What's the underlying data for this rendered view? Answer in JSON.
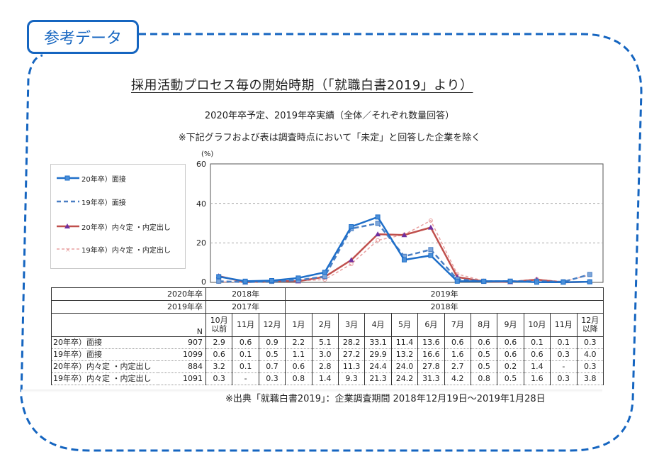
{
  "tag": {
    "label": "参考データ"
  },
  "header": {
    "title": "採用活動プロセス毎の開始時期（「就職白書2019」より）",
    "subtitle": "2020年卒予定、2019年卒実績（全体／それぞれ数量回答）",
    "note": "※下記グラフおよび表は調査時点において「未定」と回答した企業を除く"
  },
  "colors": {
    "accent": "#1565c0",
    "series_20_interview": "#1f6fc9",
    "series_19_interview": "#4a7fc4",
    "series_20_offer": "#c0504d",
    "series_19_offer": "#e8a0a0",
    "offer_marker": "#7030a0"
  },
  "chart_data": {
    "type": "line",
    "title": "採用活動プロセス毎の開始時期（「就職白書2019」より）",
    "ylabel": "(%)",
    "ylim": [
      0,
      60
    ],
    "yticks": [
      0,
      20,
      40,
      60
    ],
    "grid": true,
    "legend_position": "left",
    "categories": [
      "10月以前",
      "11月",
      "12月",
      "1月",
      "2月",
      "3月",
      "4月",
      "5月",
      "6月",
      "7月",
      "8月",
      "9月",
      "10月",
      "11月",
      "12月以降"
    ],
    "series": [
      {
        "name": "20年卒）面接",
        "style": "solid-square",
        "values": [
          2.9,
          0.6,
          0.9,
          2.2,
          5.1,
          28.2,
          33.1,
          11.4,
          13.6,
          0.6,
          0.6,
          0.6,
          0.1,
          0.1,
          0.3
        ]
      },
      {
        "name": "19年卒）面接",
        "style": "dashed-square",
        "values": [
          0.6,
          0.1,
          0.5,
          1.1,
          3.0,
          27.2,
          29.9,
          13.2,
          16.6,
          1.6,
          0.5,
          0.6,
          0.6,
          0.3,
          4.0
        ]
      },
      {
        "name": "20年卒）内々定・内定出し",
        "style": "solid-triangle",
        "values": [
          3.2,
          0.1,
          0.7,
          0.6,
          2.8,
          11.3,
          24.4,
          24.0,
          27.8,
          2.7,
          0.5,
          0.2,
          1.4,
          null,
          0.3
        ]
      },
      {
        "name": "19年卒）内々定・内定出し",
        "style": "dashed-cross",
        "values": [
          0.3,
          null,
          0.3,
          0.8,
          1.4,
          9.3,
          21.3,
          24.2,
          31.3,
          4.2,
          0.8,
          0.5,
          1.6,
          0.3,
          3.8
        ]
      }
    ]
  },
  "legend": {
    "items": [
      "20年卒）面接",
      "19年卒）面接",
      "20年卒）内々定 ・内定出し",
      "19年卒）内々定 ・内定出し"
    ]
  },
  "axis": {
    "unit": "(%)",
    "ticks": [
      "60",
      "40",
      "20",
      "0"
    ]
  },
  "table": {
    "row_2020_label": "2020年卒",
    "row_2019_label": "2019年卒",
    "year_2020_a": "2018年",
    "year_2020_b": "2019年",
    "year_2019_a": "2017年",
    "year_2019_b": "2018年",
    "n_label": "N",
    "months": [
      "10月\n以前",
      "11月",
      "12月",
      "1月",
      "2月",
      "3月",
      "4月",
      "5月",
      "6月",
      "7月",
      "8月",
      "9月",
      "10月",
      "11月",
      "12月\n以降"
    ],
    "months_a": [
      "10月",
      "11月",
      "12月",
      "1月",
      "2月",
      "3月",
      "4月",
      "5月",
      "6月",
      "7月",
      "8月",
      "9月",
      "10月",
      "11月",
      "12月"
    ],
    "months_b": [
      "以前",
      "",
      "",
      "",
      "",
      "",
      "",
      "",
      "",
      "",
      "",
      "",
      "",
      "",
      "以降"
    ],
    "rows": [
      {
        "label": "20年卒）面接",
        "n": "907",
        "values": [
          "2.9",
          "0.6",
          "0.9",
          "2.2",
          "5.1",
          "28.2",
          "33.1",
          "11.4",
          "13.6",
          "0.6",
          "0.6",
          "0.6",
          "0.1",
          "0.1",
          "0.3"
        ]
      },
      {
        "label": "19年卒）面接",
        "n": "1099",
        "values": [
          "0.6",
          "0.1",
          "0.5",
          "1.1",
          "3.0",
          "27.2",
          "29.9",
          "13.2",
          "16.6",
          "1.6",
          "0.5",
          "0.6",
          "0.6",
          "0.3",
          "4.0"
        ]
      },
      {
        "label": "20年卒）内々定 ・内定出し",
        "n": "884",
        "values": [
          "3.2",
          "0.1",
          "0.7",
          "0.6",
          "2.8",
          "11.3",
          "24.4",
          "24.0",
          "27.8",
          "2.7",
          "0.5",
          "0.2",
          "1.4",
          "-",
          "0.3"
        ]
      },
      {
        "label": "19年卒）内々定 ・内定出し",
        "n": "1091",
        "values": [
          "0.3",
          "-",
          "0.3",
          "0.8",
          "1.4",
          "9.3",
          "21.3",
          "24.2",
          "31.3",
          "4.2",
          "0.8",
          "0.5",
          "1.6",
          "0.3",
          "3.8"
        ]
      }
    ]
  },
  "footer": {
    "source": "※出典「就職白書2019」：企業調査期間 2018年12月19日～2019年1月28日"
  }
}
